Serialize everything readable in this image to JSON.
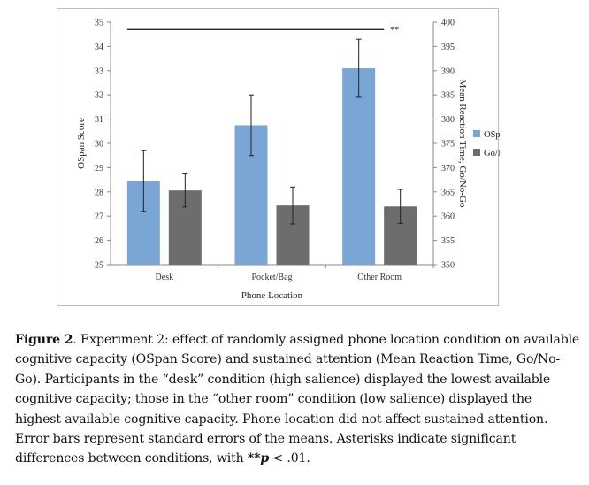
{
  "chart_data": {
    "type": "bar",
    "categories": [
      "Desk",
      "Pocket/Bag",
      "Other Room"
    ],
    "xlabel": "Phone Location",
    "ylabel": "OSpan Score",
    "y2label": "Mean Reaction Time, Go/No-Go",
    "ylim": [
      25,
      35
    ],
    "y2lim": [
      350,
      400
    ],
    "yticks": [
      "25",
      "26",
      "27",
      "28",
      "29",
      "30",
      "31",
      "32",
      "33",
      "34",
      "35"
    ],
    "y2ticks": [
      "350",
      "355",
      "360",
      "365",
      "370",
      "375",
      "380",
      "385",
      "390",
      "395",
      "400"
    ],
    "series": [
      {
        "name": "OSpan",
        "axis": "left",
        "color": "#7aa6d6",
        "values": [
          28.45,
          30.75,
          33.1
        ],
        "errors": [
          1.25,
          1.25,
          1.2
        ]
      },
      {
        "name": "Go/No-Go",
        "axis": "right",
        "color": "#6d6d6d",
        "values": [
          365.3,
          362.2,
          362.0
        ],
        "errors": [
          3.4,
          3.8,
          3.5
        ]
      }
    ],
    "legend_position": "right",
    "grid": false,
    "significance": {
      "from_category": "Desk",
      "to_category": "Other Room",
      "label": "**"
    }
  },
  "caption": {
    "figure_label": "Figure 2",
    "text_before": ". Experiment 2: effect of randomly assigned phone location condition on available cognitive capacity (OSpan Score) and sustained attention (Mean Reaction Time, Go/No-Go). Participants in the “desk” condition (high salience) displayed the lowest available cognitive capacity; those in the “other room” condition (low salience) displayed the highest available cognitive capacity. Phone location did not affect sustained attention. Error bars represent standard errors of the means. Asterisks indicate significant differences between conditions, with ",
    "stars": "**",
    "p_symbol": "p",
    "text_after": " < .01."
  }
}
